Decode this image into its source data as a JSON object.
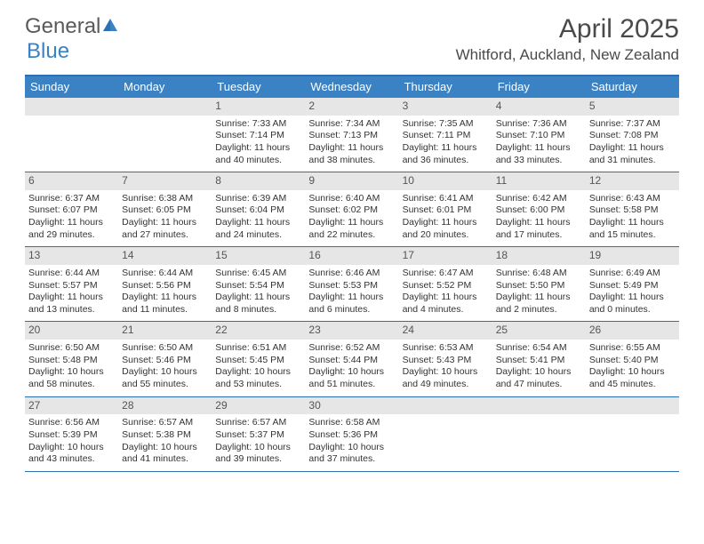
{
  "logo": {
    "word1": "General",
    "word2": "Blue"
  },
  "title": "April 2025",
  "location": "Whitford, Auckland, New Zealand",
  "colors": {
    "header_bar": "#3b82c4",
    "border": "#2d6fb0",
    "daynum_bg": "#e6e6e6",
    "text": "#333333",
    "logo_gray": "#5a5a5a"
  },
  "weekdays": [
    "Sunday",
    "Monday",
    "Tuesday",
    "Wednesday",
    "Thursday",
    "Friday",
    "Saturday"
  ],
  "weeks": [
    [
      {
        "empty": true
      },
      {
        "empty": true
      },
      {
        "day": "1",
        "sunrise": "Sunrise: 7:33 AM",
        "sunset": "Sunset: 7:14 PM",
        "daylight": "Daylight: 11 hours and 40 minutes."
      },
      {
        "day": "2",
        "sunrise": "Sunrise: 7:34 AM",
        "sunset": "Sunset: 7:13 PM",
        "daylight": "Daylight: 11 hours and 38 minutes."
      },
      {
        "day": "3",
        "sunrise": "Sunrise: 7:35 AM",
        "sunset": "Sunset: 7:11 PM",
        "daylight": "Daylight: 11 hours and 36 minutes."
      },
      {
        "day": "4",
        "sunrise": "Sunrise: 7:36 AM",
        "sunset": "Sunset: 7:10 PM",
        "daylight": "Daylight: 11 hours and 33 minutes."
      },
      {
        "day": "5",
        "sunrise": "Sunrise: 7:37 AM",
        "sunset": "Sunset: 7:08 PM",
        "daylight": "Daylight: 11 hours and 31 minutes."
      }
    ],
    [
      {
        "day": "6",
        "sunrise": "Sunrise: 6:37 AM",
        "sunset": "Sunset: 6:07 PM",
        "daylight": "Daylight: 11 hours and 29 minutes."
      },
      {
        "day": "7",
        "sunrise": "Sunrise: 6:38 AM",
        "sunset": "Sunset: 6:05 PM",
        "daylight": "Daylight: 11 hours and 27 minutes."
      },
      {
        "day": "8",
        "sunrise": "Sunrise: 6:39 AM",
        "sunset": "Sunset: 6:04 PM",
        "daylight": "Daylight: 11 hours and 24 minutes."
      },
      {
        "day": "9",
        "sunrise": "Sunrise: 6:40 AM",
        "sunset": "Sunset: 6:02 PM",
        "daylight": "Daylight: 11 hours and 22 minutes."
      },
      {
        "day": "10",
        "sunrise": "Sunrise: 6:41 AM",
        "sunset": "Sunset: 6:01 PM",
        "daylight": "Daylight: 11 hours and 20 minutes."
      },
      {
        "day": "11",
        "sunrise": "Sunrise: 6:42 AM",
        "sunset": "Sunset: 6:00 PM",
        "daylight": "Daylight: 11 hours and 17 minutes."
      },
      {
        "day": "12",
        "sunrise": "Sunrise: 6:43 AM",
        "sunset": "Sunset: 5:58 PM",
        "daylight": "Daylight: 11 hours and 15 minutes."
      }
    ],
    [
      {
        "day": "13",
        "sunrise": "Sunrise: 6:44 AM",
        "sunset": "Sunset: 5:57 PM",
        "daylight": "Daylight: 11 hours and 13 minutes."
      },
      {
        "day": "14",
        "sunrise": "Sunrise: 6:44 AM",
        "sunset": "Sunset: 5:56 PM",
        "daylight": "Daylight: 11 hours and 11 minutes."
      },
      {
        "day": "15",
        "sunrise": "Sunrise: 6:45 AM",
        "sunset": "Sunset: 5:54 PM",
        "daylight": "Daylight: 11 hours and 8 minutes."
      },
      {
        "day": "16",
        "sunrise": "Sunrise: 6:46 AM",
        "sunset": "Sunset: 5:53 PM",
        "daylight": "Daylight: 11 hours and 6 minutes."
      },
      {
        "day": "17",
        "sunrise": "Sunrise: 6:47 AM",
        "sunset": "Sunset: 5:52 PM",
        "daylight": "Daylight: 11 hours and 4 minutes."
      },
      {
        "day": "18",
        "sunrise": "Sunrise: 6:48 AM",
        "sunset": "Sunset: 5:50 PM",
        "daylight": "Daylight: 11 hours and 2 minutes."
      },
      {
        "day": "19",
        "sunrise": "Sunrise: 6:49 AM",
        "sunset": "Sunset: 5:49 PM",
        "daylight": "Daylight: 11 hours and 0 minutes."
      }
    ],
    [
      {
        "day": "20",
        "sunrise": "Sunrise: 6:50 AM",
        "sunset": "Sunset: 5:48 PM",
        "daylight": "Daylight: 10 hours and 58 minutes."
      },
      {
        "day": "21",
        "sunrise": "Sunrise: 6:50 AM",
        "sunset": "Sunset: 5:46 PM",
        "daylight": "Daylight: 10 hours and 55 minutes."
      },
      {
        "day": "22",
        "sunrise": "Sunrise: 6:51 AM",
        "sunset": "Sunset: 5:45 PM",
        "daylight": "Daylight: 10 hours and 53 minutes."
      },
      {
        "day": "23",
        "sunrise": "Sunrise: 6:52 AM",
        "sunset": "Sunset: 5:44 PM",
        "daylight": "Daylight: 10 hours and 51 minutes."
      },
      {
        "day": "24",
        "sunrise": "Sunrise: 6:53 AM",
        "sunset": "Sunset: 5:43 PM",
        "daylight": "Daylight: 10 hours and 49 minutes."
      },
      {
        "day": "25",
        "sunrise": "Sunrise: 6:54 AM",
        "sunset": "Sunset: 5:41 PM",
        "daylight": "Daylight: 10 hours and 47 minutes."
      },
      {
        "day": "26",
        "sunrise": "Sunrise: 6:55 AM",
        "sunset": "Sunset: 5:40 PM",
        "daylight": "Daylight: 10 hours and 45 minutes."
      }
    ],
    [
      {
        "day": "27",
        "sunrise": "Sunrise: 6:56 AM",
        "sunset": "Sunset: 5:39 PM",
        "daylight": "Daylight: 10 hours and 43 minutes."
      },
      {
        "day": "28",
        "sunrise": "Sunrise: 6:57 AM",
        "sunset": "Sunset: 5:38 PM",
        "daylight": "Daylight: 10 hours and 41 minutes."
      },
      {
        "day": "29",
        "sunrise": "Sunrise: 6:57 AM",
        "sunset": "Sunset: 5:37 PM",
        "daylight": "Daylight: 10 hours and 39 minutes."
      },
      {
        "day": "30",
        "sunrise": "Sunrise: 6:58 AM",
        "sunset": "Sunset: 5:36 PM",
        "daylight": "Daylight: 10 hours and 37 minutes."
      },
      {
        "empty": true
      },
      {
        "empty": true
      },
      {
        "empty": true
      }
    ]
  ]
}
